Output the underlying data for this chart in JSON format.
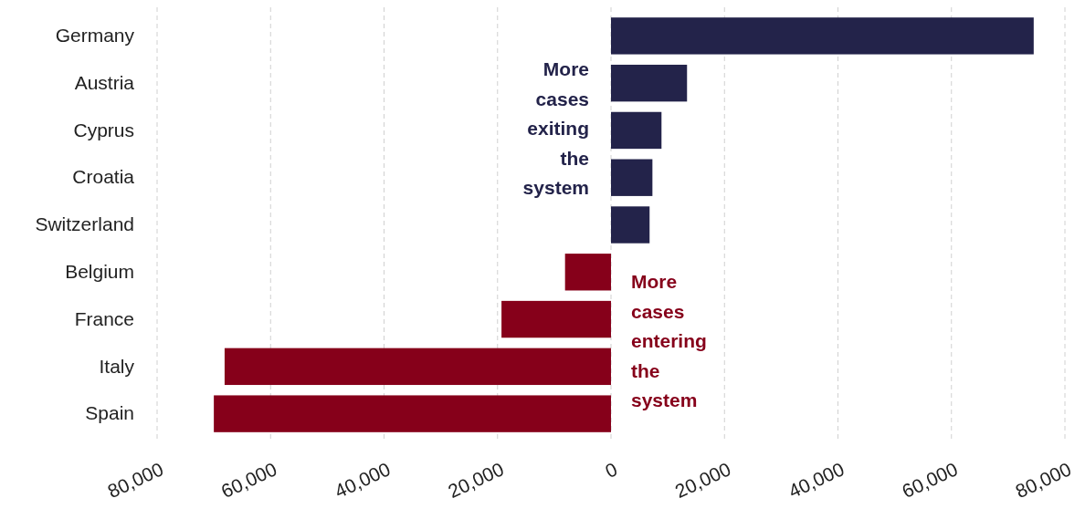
{
  "chart_data": {
    "type": "bar",
    "orientation": "horizontal",
    "categories": [
      "Germany",
      "Austria",
      "Cyprus",
      "Croatia",
      "Switzerland",
      "Belgium",
      "France",
      "Italy",
      "Spain"
    ],
    "values": [
      74500,
      13400,
      8900,
      7300,
      6800,
      -8100,
      -19300,
      -68100,
      -70000
    ],
    "colors": [
      "#23234a",
      "#23234a",
      "#23234a",
      "#23234a",
      "#23234a",
      "#86001a",
      "#86001a",
      "#86001a",
      "#86001a"
    ],
    "xlim": [
      -80000,
      80000
    ],
    "xticks": [
      {
        "value": -80000,
        "label": "80,000"
      },
      {
        "value": -60000,
        "label": "60,000"
      },
      {
        "value": -40000,
        "label": "40,000"
      },
      {
        "value": -20000,
        "label": "20,000"
      },
      0,
      {
        "value": 20000,
        "label": "20,000"
      },
      {
        "value": 40000,
        "label": "40,000"
      },
      {
        "value": 60000,
        "label": "60,000"
      },
      {
        "value": 80000,
        "label": "80,000"
      }
    ],
    "grid": "x",
    "annotations": [
      "More cases exiting the system",
      "More cases entering the system"
    ]
  }
}
